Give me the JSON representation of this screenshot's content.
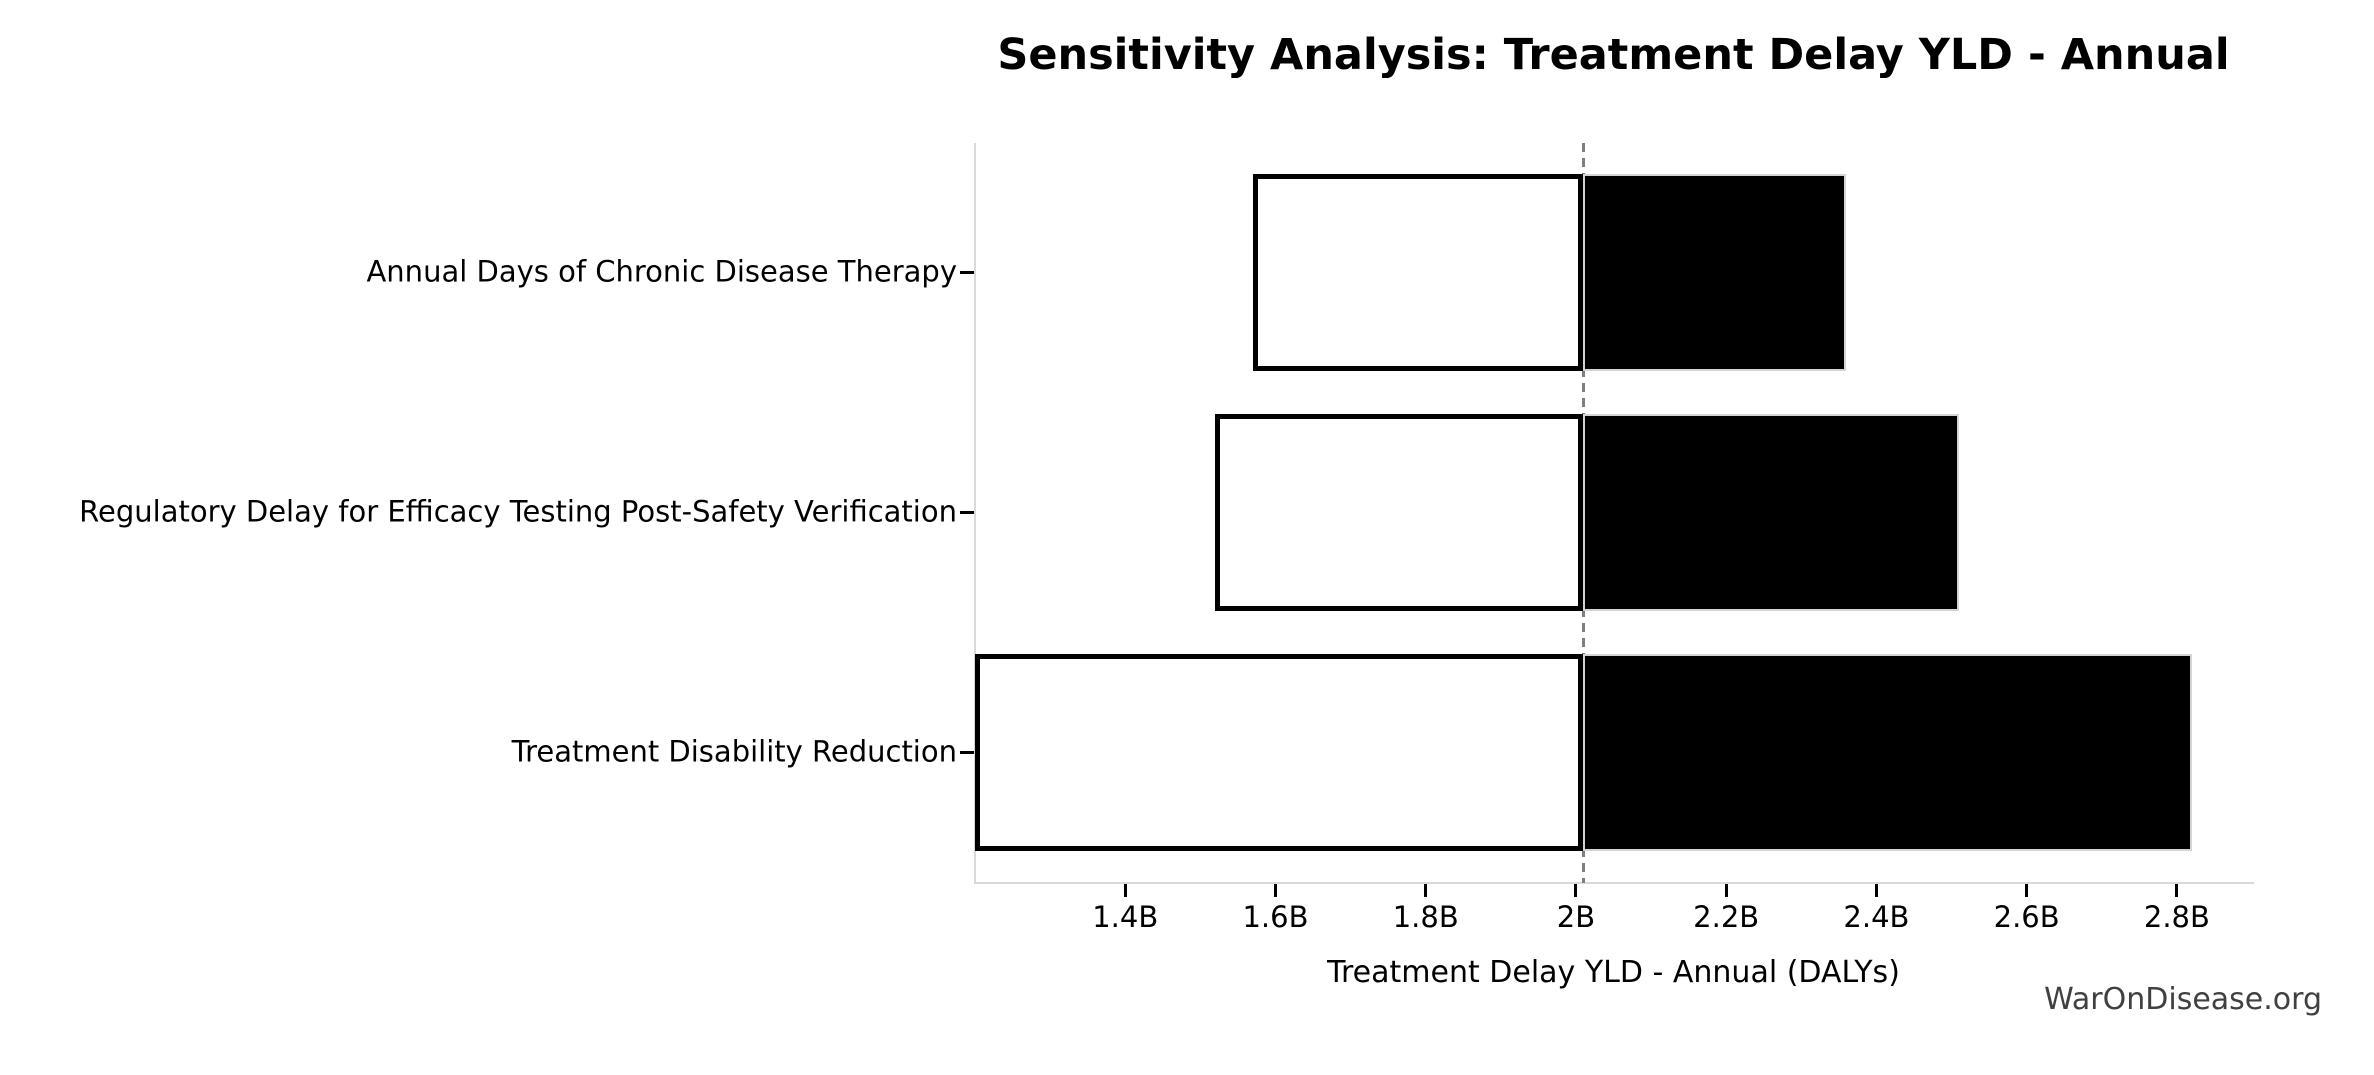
{
  "watermark": "WarOnDisease.org",
  "chart_data": {
    "type": "bar",
    "variant": "tornado-sensitivity",
    "title": "Sensitivity Analysis: Treatment Delay YLD - Annual",
    "xlabel": "Treatment Delay YLD - Annual (DALYs)",
    "unit": "B (billions of DALYs)",
    "xlim": [
      1.2,
      2.9
    ],
    "baseline": 2.01,
    "grid": false,
    "legend": null,
    "x_ticks": [
      {
        "value": 1.4,
        "label": "1.4B"
      },
      {
        "value": 1.6,
        "label": "1.6B"
      },
      {
        "value": 1.8,
        "label": "1.8B"
      },
      {
        "value": 2.0,
        "label": "2B"
      },
      {
        "value": 2.2,
        "label": "2.2B"
      },
      {
        "value": 2.4,
        "label": "2.4B"
      },
      {
        "value": 2.6,
        "label": "2.6B"
      },
      {
        "value": 2.8,
        "label": "2.8B"
      }
    ],
    "categories": [
      {
        "label": "Annual Days of Chronic Disease Therapy",
        "low": 1.57,
        "high": 2.36
      },
      {
        "label": "Regulatory Delay for Efficacy Testing Post-Safety Verification",
        "low": 1.52,
        "high": 2.51
      },
      {
        "label": "Treatment Disability Reduction",
        "low": 1.2,
        "high": 2.82
      }
    ],
    "colors": {
      "low_fill": "#ffffff",
      "low_edge": "#000000",
      "high_fill": "#000000",
      "baseline_line": "#7f7f7f",
      "spine": "#d9d9d9",
      "tick": "#000000",
      "watermark": "#404040"
    }
  }
}
